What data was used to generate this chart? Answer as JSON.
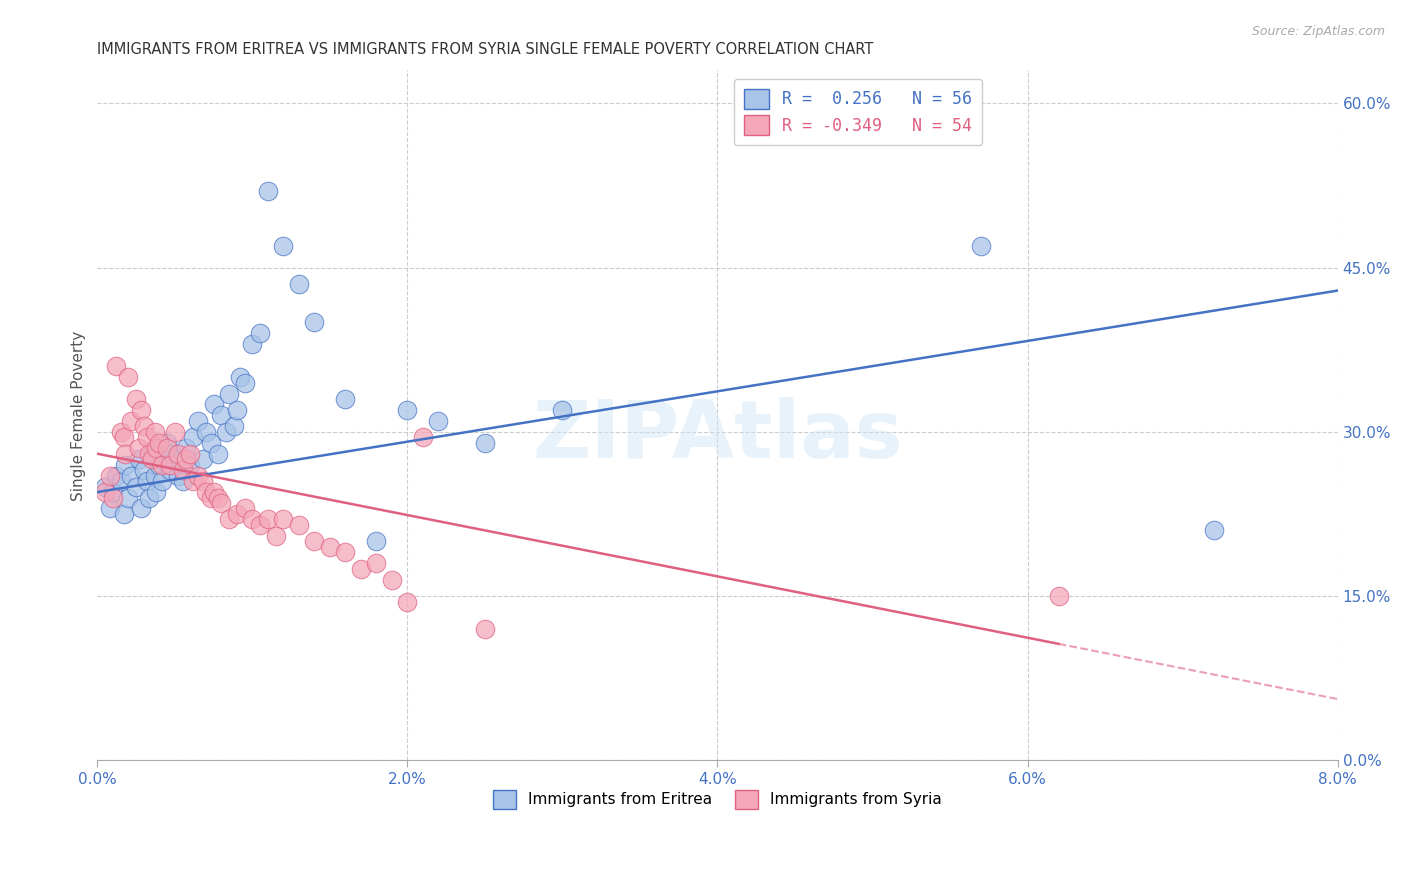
{
  "title": "IMMIGRANTS FROM ERITREA VS IMMIGRANTS FROM SYRIA SINGLE FEMALE POVERTY CORRELATION CHART",
  "source": "Source: ZipAtlas.com",
  "ylabel": "Single Female Poverty",
  "y_right_ticks": [
    0.0,
    15.0,
    30.0,
    45.0,
    60.0
  ],
  "x_ticks": [
    0.0,
    2.0,
    4.0,
    6.0,
    8.0
  ],
  "xlim": [
    0.0,
    8.0
  ],
  "ylim": [
    0.0,
    63.0
  ],
  "legend_eritrea_r": "R =  0.256",
  "legend_eritrea_n": "N = 56",
  "legend_syria_r": "R = -0.349",
  "legend_syria_n": "N = 54",
  "eritrea_color": "#a8c4e8",
  "syria_color": "#f4a7b9",
  "eritrea_line_color": "#4472c4",
  "syria_line_color": "#e06080",
  "watermark": "ZIPAtlas",
  "eritrea_R": 0.256,
  "syria_R": -0.349,
  "eritrea_intercept": 24.5,
  "eritrea_slope": 2.3,
  "syria_intercept": 28.0,
  "syria_slope": -2.8,
  "eritrea_x": [
    0.05,
    0.08,
    0.1,
    0.12,
    0.15,
    0.17,
    0.18,
    0.2,
    0.22,
    0.25,
    0.27,
    0.28,
    0.3,
    0.32,
    0.33,
    0.35,
    0.37,
    0.38,
    0.4,
    0.42,
    0.45,
    0.47,
    0.48,
    0.5,
    0.52,
    0.55,
    0.57,
    0.6,
    0.62,
    0.65,
    0.68,
    0.7,
    0.73,
    0.75,
    0.78,
    0.8,
    0.83,
    0.85,
    0.88,
    0.9,
    0.92,
    0.95,
    1.0,
    1.05,
    1.1,
    1.2,
    1.3,
    1.4,
    1.6,
    1.8,
    2.0,
    2.2,
    2.5,
    3.0,
    5.7,
    7.2
  ],
  "eritrea_y": [
    25.0,
    23.0,
    24.5,
    26.0,
    25.5,
    22.5,
    27.0,
    24.0,
    26.0,
    25.0,
    27.5,
    23.0,
    26.5,
    25.5,
    24.0,
    28.0,
    26.0,
    24.5,
    27.0,
    25.5,
    29.0,
    26.5,
    28.0,
    27.5,
    26.0,
    25.5,
    28.5,
    27.0,
    29.5,
    31.0,
    27.5,
    30.0,
    29.0,
    32.5,
    28.0,
    31.5,
    30.0,
    33.5,
    30.5,
    32.0,
    35.0,
    34.5,
    38.0,
    39.0,
    52.0,
    47.0,
    43.5,
    40.0,
    33.0,
    20.0,
    32.0,
    31.0,
    29.0,
    32.0,
    47.0,
    21.0
  ],
  "syria_x": [
    0.05,
    0.08,
    0.1,
    0.12,
    0.15,
    0.17,
    0.18,
    0.2,
    0.22,
    0.25,
    0.27,
    0.28,
    0.3,
    0.32,
    0.33,
    0.35,
    0.37,
    0.38,
    0.4,
    0.42,
    0.45,
    0.47,
    0.5,
    0.52,
    0.55,
    0.57,
    0.6,
    0.62,
    0.65,
    0.68,
    0.7,
    0.73,
    0.75,
    0.78,
    0.8,
    0.85,
    0.9,
    0.95,
    1.0,
    1.05,
    1.1,
    1.15,
    1.2,
    1.3,
    1.4,
    1.5,
    1.6,
    1.7,
    1.8,
    1.9,
    2.0,
    2.1,
    2.5,
    6.2
  ],
  "syria_y": [
    24.5,
    26.0,
    24.0,
    36.0,
    30.0,
    29.5,
    28.0,
    35.0,
    31.0,
    33.0,
    28.5,
    32.0,
    30.5,
    29.5,
    28.0,
    27.5,
    30.0,
    28.5,
    29.0,
    27.0,
    28.5,
    27.0,
    30.0,
    28.0,
    26.5,
    27.5,
    28.0,
    25.5,
    26.0,
    25.5,
    24.5,
    24.0,
    24.5,
    24.0,
    23.5,
    22.0,
    22.5,
    23.0,
    22.0,
    21.5,
    22.0,
    20.5,
    22.0,
    21.5,
    20.0,
    19.5,
    19.0,
    17.5,
    18.0,
    16.5,
    14.5,
    29.5,
    12.0,
    15.0
  ]
}
